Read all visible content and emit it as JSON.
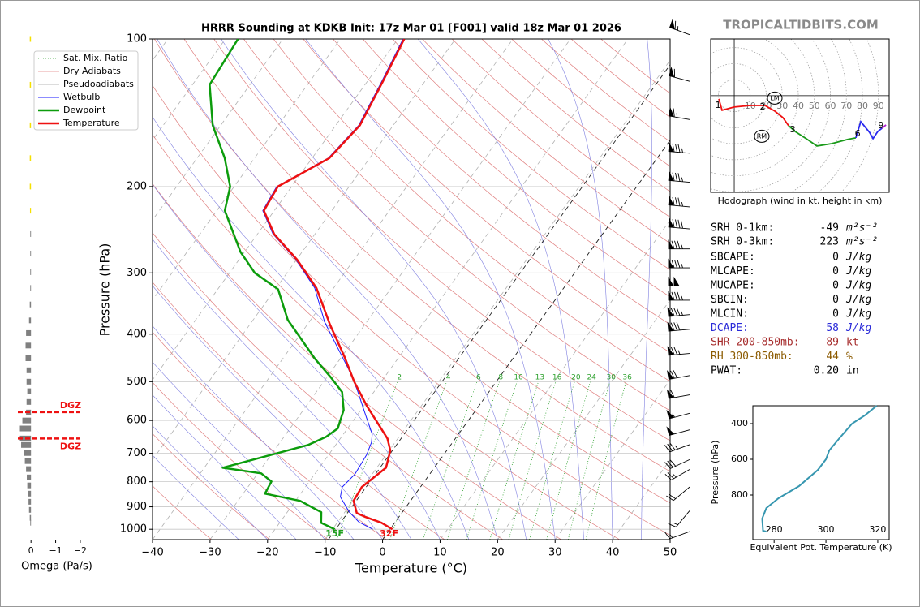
{
  "watermark": "TROPICALTIDBITS.COM",
  "stats": [
    {
      "label": "SRH 0-1km:",
      "value": -49,
      "unit": "m²s⁻²",
      "color": "#000000"
    },
    {
      "label": "SRH 0-3km:",
      "value": 223,
      "unit": "m²s⁻²",
      "color": "#000000"
    },
    {
      "label": "SBCAPE:",
      "value": 0,
      "unit": "J/kg",
      "color": "#000000"
    },
    {
      "label": "MLCAPE:",
      "value": 0,
      "unit": "J/kg",
      "color": "#000000"
    },
    {
      "label": "MUCAPE:",
      "value": 0,
      "unit": "J/kg",
      "color": "#000000"
    },
    {
      "label": "SBCIN:",
      "value": 0,
      "unit": "J/kg",
      "color": "#000000"
    },
    {
      "label": "MLCIN:",
      "value": 0,
      "unit": "J/kg",
      "color": "#000000"
    },
    {
      "label": "DCAPE:",
      "value": 58,
      "unit": "J/kg",
      "color": "#2a2ad8"
    },
    {
      "label": "SHR 200-850mb:",
      "value": 89,
      "unit": "kt",
      "color": "#a52a2a"
    },
    {
      "label": "RH 300-850mb:",
      "value": 44,
      "unit": "%",
      "color": "#8b5a00"
    },
    {
      "label": "PWAT:",
      "value": 0.2,
      "value_label": "0.20",
      "unit": "in",
      "color": "#000000"
    }
  ],
  "chart_data": [
    {
      "type": "skewt",
      "title": "HRRR Sounding at KDKB Init: 17z Mar 01 [F001] valid 18z Mar 01 2026",
      "x_label": "Temperature (°C)",
      "y_label": "Pressure (hPa)",
      "xlim": [
        -40,
        50
      ],
      "ylim": [
        1050,
        100
      ],
      "log_y": true,
      "grid": true,
      "xticks": [
        {
          "value": -40,
          "label": "−40"
        },
        {
          "value": -30,
          "label": "−30"
        },
        {
          "value": -20,
          "label": "−20"
        },
        {
          "value": -10,
          "label": "−10"
        },
        0,
        10,
        20,
        30,
        40,
        50
      ],
      "yticks": [
        100,
        200,
        300,
        400,
        500,
        600,
        700,
        800,
        900,
        1000
      ],
      "background_lines": [
        {
          "name": "Sat. Mix. Ratio",
          "color": "#2ca02c"
        },
        {
          "name": "Dry Adiabats",
          "color": "#e08080"
        },
        {
          "name": "Pseudoadiabats",
          "color": "#a0a0a0"
        }
      ],
      "mixing_ratio_labels": [
        2,
        4,
        6,
        8,
        10,
        13,
        16,
        20,
        24,
        30,
        36
      ],
      "reference_isotherms": [
        {
          "label": "15F",
          "value": -9.44,
          "color": "#1fa01f"
        },
        {
          "label": "32F",
          "value": 0,
          "color": "#ee1111"
        }
      ],
      "series": [
        {
          "name": "Wetbulb",
          "color": "#1a1aff",
          "width": 1,
          "pressure": [
            1000,
            967,
            923,
            859,
            820,
            772,
            704,
            665,
            640,
            593,
            552,
            519,
            472,
            421,
            378,
            322,
            282,
            250,
            224,
            200,
            175,
            150,
            122,
            100
          ],
          "values": [
            -3,
            -6.3,
            -9.2,
            -12.7,
            -13.6,
            -13,
            -13.4,
            -14.1,
            -15,
            -18,
            -20.8,
            -23.2,
            -27.2,
            -32.4,
            -37.3,
            -43.3,
            -50.1,
            -57.3,
            -62,
            -62.6,
            -57.2,
            -56,
            -57.5,
            -59.1
          ]
        },
        {
          "name": "Dewpoint",
          "color": "#0c9c0c",
          "width": 2.5,
          "pressure": [
            1000,
            970,
            923,
            875,
            846,
            799,
            769,
            749,
            673,
            648,
            623,
            571,
            525,
            490,
            449,
            374,
            324,
            300,
            272,
            224,
            200,
            175,
            150,
            124,
            100
          ],
          "values": [
            -9.6,
            -12.8,
            -14.1,
            -19.2,
            -26.2,
            -26.6,
            -29.4,
            -36.8,
            -24.8,
            -22.7,
            -21.7,
            -23,
            -25.5,
            -29.3,
            -34.4,
            -44,
            -49.5,
            -55.6,
            -60.7,
            -68.6,
            -70.7,
            -75.2,
            -81.4,
            -87,
            -87.8
          ]
        },
        {
          "name": "Temperature",
          "color": "#ee1111",
          "width": 2.5,
          "pressure": [
            1000,
            970,
            944,
            927,
            875,
            820,
            749,
            691,
            653,
            609,
            560,
            500,
            446,
            383,
            322,
            282,
            250,
            224,
            200,
            175,
            150,
            122,
            100
          ],
          "values": [
            0.4,
            -2.3,
            -5.8,
            -7.8,
            -9.9,
            -10.2,
            -8.4,
            -9.8,
            -11.8,
            -15.3,
            -19.5,
            -24.7,
            -29.4,
            -36,
            -43,
            -49.9,
            -57.1,
            -61.8,
            -62.4,
            -57,
            -55.8,
            -57.3,
            -58.9
          ]
        }
      ],
      "wind": {
        "pressure": [
          98,
          122,
          146,
          171,
          196,
          220,
          244,
          268,
          293,
          319,
          341,
          365,
          391,
          438,
          486,
          532,
          580,
          627,
          672,
          721,
          755,
          820,
          917,
          1011
        ],
        "speed": [
          65,
          60,
          65,
          85,
          85,
          85,
          90,
          85,
          85,
          100,
          85,
          85,
          80,
          75,
          70,
          60,
          55,
          50,
          35,
          30,
          25,
          20,
          15,
          15
        ],
        "direction": [
          290,
          285,
          280,
          275,
          275,
          275,
          275,
          270,
          270,
          270,
          270,
          265,
          265,
          265,
          260,
          260,
          255,
          255,
          250,
          245,
          240,
          230,
          220,
          250
        ]
      }
    },
    {
      "type": "omega-bars",
      "x_label": "Omega (Pa/s)",
      "xlim": [
        0.5,
        -2.2
      ],
      "xticks": [
        0,
        {
          "value": -1,
          "label": "−1"
        },
        {
          "value": -2,
          "label": "−2"
        }
      ],
      "pressure": [
        100,
        124,
        150,
        175,
        200,
        224,
        250,
        274,
        299,
        322,
        348,
        375,
        398,
        422,
        448,
        474,
        500,
        523,
        550,
        578,
        600,
        623,
        653,
        673,
        699,
        726,
        754,
        784,
        814,
        846,
        879,
        913,
        948,
        970
      ],
      "values": [
        0.05,
        0.05,
        0.05,
        0.05,
        0.05,
        0.04,
        0.03,
        0.03,
        0.03,
        0.03,
        0.05,
        0.08,
        0.2,
        0.22,
        0.22,
        0.18,
        0.18,
        0.15,
        0.18,
        0.2,
        0.35,
        0.45,
        0.45,
        0.4,
        0.3,
        0.25,
        0.2,
        0.17,
        0.15,
        0.12,
        0.1,
        0.08,
        0.05,
        0.03
      ],
      "colors": [
        "#f5e000",
        "#f5e000",
        "#f5e000",
        "#f5e000",
        "#f5e000",
        "#f5e000",
        "#808080",
        "#808080",
        "#808080",
        "#808080",
        "#808080",
        "#808080",
        "#808080",
        "#808080",
        "#808080",
        "#808080",
        "#808080",
        "#808080",
        "#808080",
        "#808080",
        "#808080",
        "#808080",
        "#808080",
        "#808080",
        "#808080",
        "#808080",
        "#808080",
        "#808080",
        "#808080",
        "#808080",
        "#808080",
        "#808080",
        "#808080",
        "#808080"
      ],
      "dgz": {
        "label": "DGZ",
        "top": 577,
        "bottom": 653,
        "color": "#ee1111"
      }
    },
    {
      "type": "hodograph",
      "caption": "Hodograph (wind in kt, height in km)",
      "xlim": [
        -14.7,
        96.7
      ],
      "ylim": [
        -60.3,
        35.4
      ],
      "rings": [
        10,
        20,
        30,
        40,
        50,
        60,
        70,
        80,
        90
      ],
      "series": [
        {
          "color": "#ee1111",
          "u": [
            -9.6,
            -7.6,
            0,
            10.1,
            19.2,
            25.3,
            30.4,
            33.9
          ],
          "v": [
            -2,
            -9.1,
            -7.1,
            -6.1,
            -6.1,
            -9.6,
            -13.7,
            -18.7
          ]
        },
        {
          "color": "#1a9a1a",
          "u": [
            33.9,
            38,
            45.6,
            51.6,
            60.8,
            70.9,
            75.9
          ],
          "v": [
            -18.7,
            -22.3,
            -27.3,
            -31.4,
            -29.9,
            -27.3,
            -26.3
          ]
        },
        {
          "color": "#2a2aee",
          "u": [
            75.9,
            79,
            84.5,
            86.6,
            89.6,
            92.2
          ],
          "v": [
            -26.3,
            -16.2,
            -23,
            -26.8,
            -22.3,
            -20.3
          ]
        },
        {
          "color": "#b020d0",
          "u": [
            92.2,
            94.7
          ],
          "v": [
            -20.3,
            -18.2
          ]
        }
      ],
      "height_labels": [
        {
          "label": "1",
          "u": -10.1,
          "v": -6.1
        },
        {
          "label": "2",
          "u": 17.7,
          "v": -7.1
        },
        {
          "label": "3",
          "u": 36.5,
          "v": -21.3
        },
        {
          "label": "6",
          "u": 77,
          "v": -23.8
        },
        {
          "label": "9",
          "u": 91.6,
          "v": -18.7
        }
      ],
      "storm_motion": [
        {
          "label": "LM",
          "u": 25.3,
          "v": -1.5
        },
        {
          "label": "RM",
          "u": 17.2,
          "v": -25.3
        }
      ]
    },
    {
      "type": "profile",
      "x_label": "Equivalent Pot. Temperature (K)",
      "y_label": "Pressure (hPa)",
      "xlim": [
        271.8,
        324.4
      ],
      "ylim": [
        1050,
        300
      ],
      "xticks": [
        280,
        300,
        320
      ],
      "yticks": [
        400,
        600,
        800
      ],
      "color": "#3797b0",
      "theta_e": [
        319.6,
        314.9,
        310.1,
        305.2,
        301.3,
        300,
        296.9,
        289.6,
        281.7,
        277,
        275.4,
        275.7,
        277
      ],
      "pressure": [
        300,
        355,
        400,
        482,
        550,
        600,
        659,
        750,
        818,
        873,
        932,
        1000,
        1005
      ]
    }
  ]
}
